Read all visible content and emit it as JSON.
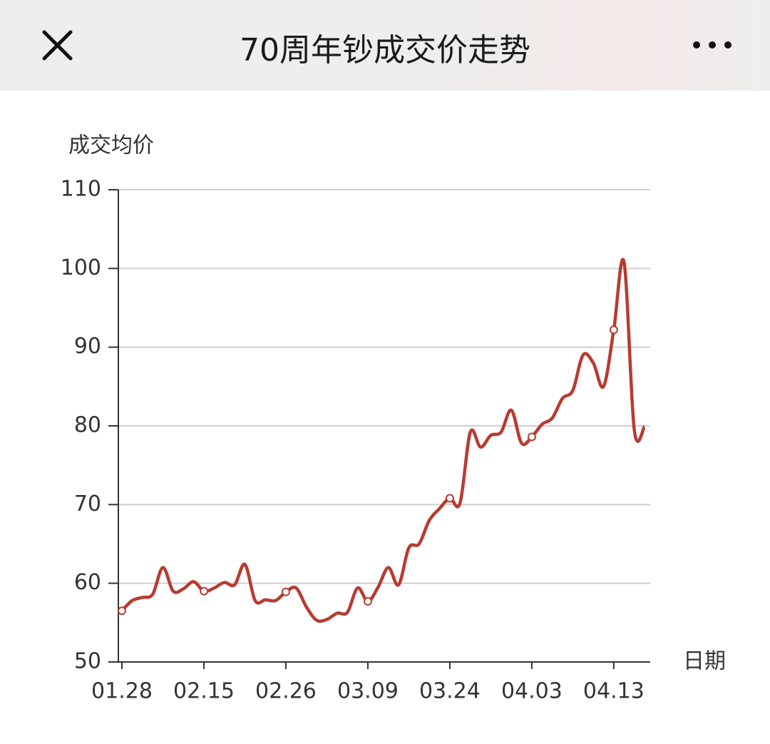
{
  "header": {
    "title": "70周年钞成交价走势"
  },
  "chart_data": {
    "type": "line",
    "y_label": "成交均价",
    "x_label": "日期",
    "categories": [
      "01.28",
      null,
      null,
      null,
      null,
      null,
      null,
      null,
      "02.15",
      null,
      null,
      null,
      null,
      null,
      null,
      null,
      "02.26",
      null,
      null,
      null,
      null,
      null,
      null,
      null,
      "03.09",
      null,
      null,
      null,
      null,
      null,
      null,
      null,
      "03.24",
      null,
      null,
      null,
      null,
      null,
      null,
      null,
      "04.03",
      null,
      null,
      null,
      null,
      null,
      null,
      null,
      "04.13",
      null,
      null,
      null
    ],
    "values": [
      56.5,
      57.8,
      58.2,
      58.6,
      62,
      59,
      59.3,
      60.2,
      59,
      59.4,
      60.1,
      59.8,
      62.4,
      57.8,
      57.9,
      57.8,
      58.9,
      59.4,
      57,
      55.3,
      55.4,
      56.2,
      56.3,
      59.4,
      57.7,
      59.5,
      62,
      59.8,
      64.5,
      65,
      68,
      69.5,
      70.8,
      70.2,
      79.2,
      77.3,
      78.8,
      79.2,
      82,
      77.8,
      78.6,
      80.2,
      81,
      83.5,
      84.5,
      89,
      88,
      85,
      92.2,
      100.8,
      79.5,
      79.9
    ],
    "color": "#b83b30",
    "ylim": [
      50,
      110
    ],
    "yticks": [
      50,
      60,
      70,
      80,
      90,
      100,
      110
    ],
    "grid": true
  }
}
